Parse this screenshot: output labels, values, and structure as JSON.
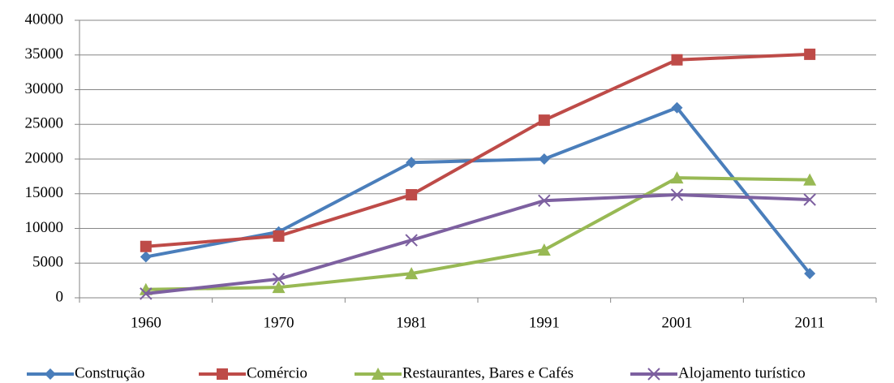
{
  "chart_data": {
    "type": "line",
    "categories": [
      "1960",
      "1970",
      "1981",
      "1991",
      "2001",
      "2011"
    ],
    "series": [
      {
        "name": "Construção",
        "color": "#4a7ebb",
        "marker": "diamond",
        "values": [
          5900,
          9500,
          19500,
          20000,
          27400,
          3500
        ]
      },
      {
        "name": "Comércio",
        "color": "#be4b48",
        "marker": "square",
        "values": [
          7400,
          8900,
          14850,
          25600,
          34300,
          35100
        ]
      },
      {
        "name": "Restaurantes, Bares e Cafés",
        "color": "#98b954",
        "marker": "triangle",
        "values": [
          1200,
          1500,
          3500,
          6900,
          17300,
          17000
        ]
      },
      {
        "name": "Alojamento turístico",
        "color": "#7d60a0",
        "marker": "x",
        "values": [
          600,
          2700,
          8300,
          14000,
          14850,
          14150
        ]
      }
    ],
    "ylim": [
      0,
      40000
    ],
    "yticks": [
      0,
      5000,
      10000,
      15000,
      20000,
      25000,
      30000,
      35000,
      40000
    ],
    "grid": true,
    "legend": "bottom"
  }
}
